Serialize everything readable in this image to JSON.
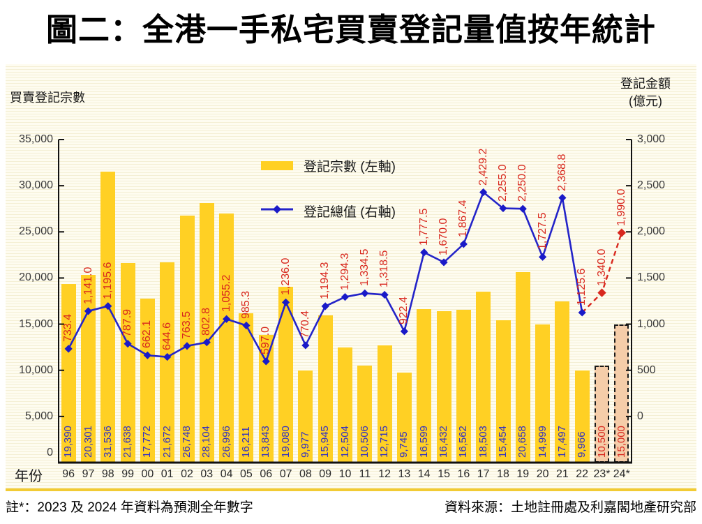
{
  "title": "圖二：全港一手私宅買賣登記量值按年統計",
  "panel": {
    "left_axis_title": "買賣登記宗數",
    "right_axis_title_line1": "登記金額",
    "right_axis_title_line2": "(億元)",
    "x_axis_title": "年份"
  },
  "legend": {
    "bars_label": "登記宗數 (左軸)",
    "line_label": "登記總值 (右軸)"
  },
  "footnotes": {
    "note": "註*：2023 及 2024 年資料為預測全年數字",
    "source": "資料來源：土地註冊處及利嘉閣地產研究部"
  },
  "colors": {
    "bar": "#FFD024",
    "bar_forecast_fill": "#F5CDA9",
    "bar_forecast_border": "#1a1a1a",
    "line": "#2424C8",
    "marker": "#1A1AC8",
    "forecast_line": "#D8281E",
    "bar_value_text": "#2F2FC4",
    "line_value_text": "#D8281E",
    "axis": "#111111",
    "panel_background": "#FDFBEE",
    "gold_rule": "#F2CB34"
  },
  "chart_data": {
    "type": "bar+line",
    "title": "圖二：全港一手私宅買賣登記量值按年統計",
    "grid": false,
    "legend_position": "inside-top-center",
    "categories": [
      "96",
      "97",
      "98",
      "99",
      "00",
      "01",
      "02",
      "03",
      "04",
      "05",
      "06",
      "07",
      "08",
      "09",
      "10",
      "11",
      "12",
      "13",
      "14",
      "15",
      "16",
      "17",
      "18",
      "19",
      "20",
      "21",
      "22",
      "23*",
      "24*"
    ],
    "series": [
      {
        "name": "登記宗數 (左軸)",
        "type": "bar",
        "axis": "left",
        "values": [
          19390,
          20301,
          31536,
          21638,
          17772,
          21672,
          26748,
          28104,
          26996,
          16211,
          13843,
          19080,
          9977,
          15945,
          12504,
          10506,
          12715,
          9745,
          16599,
          16432,
          16562,
          18503,
          15454,
          20658,
          14999,
          17497,
          9966,
          10500,
          15000
        ]
      },
      {
        "name": "登記總值 (右軸)",
        "type": "line",
        "axis": "right",
        "values": [
          733.4,
          1141.0,
          1195.6,
          787.9,
          662.1,
          644.6,
          763.5,
          802.8,
          1055.2,
          985.3,
          597.0,
          1236.0,
          770.4,
          1194.3,
          1294.3,
          1334.5,
          1318.5,
          922.4,
          1777.5,
          1670.0,
          1867.4,
          2429.2,
          2255.0,
          2250.0,
          1727.5,
          2368.8,
          1125.6,
          1340.0,
          1990.0
        ]
      }
    ],
    "forecast_from_index": 27,
    "forecast_categories": [
      "23*",
      "24*"
    ],
    "left_axis": {
      "title": "買賣登記宗數",
      "min": 0,
      "max": 35000,
      "tick_step": 5000,
      "tick_labels": [
        "35,000",
        "30,000",
        "25,000",
        "20,000",
        "15,000",
        "10,000",
        "5,000",
        "0"
      ]
    },
    "right_axis": {
      "title": "登記金額 (億元)",
      "min": -500,
      "max": 3000,
      "tick_step": 500,
      "tick_labels": [
        "3,000",
        "2,500",
        "2,000",
        "1,500",
        "1,000",
        "500",
        "0"
      ]
    },
    "x_axis": {
      "title": "年份"
    }
  }
}
